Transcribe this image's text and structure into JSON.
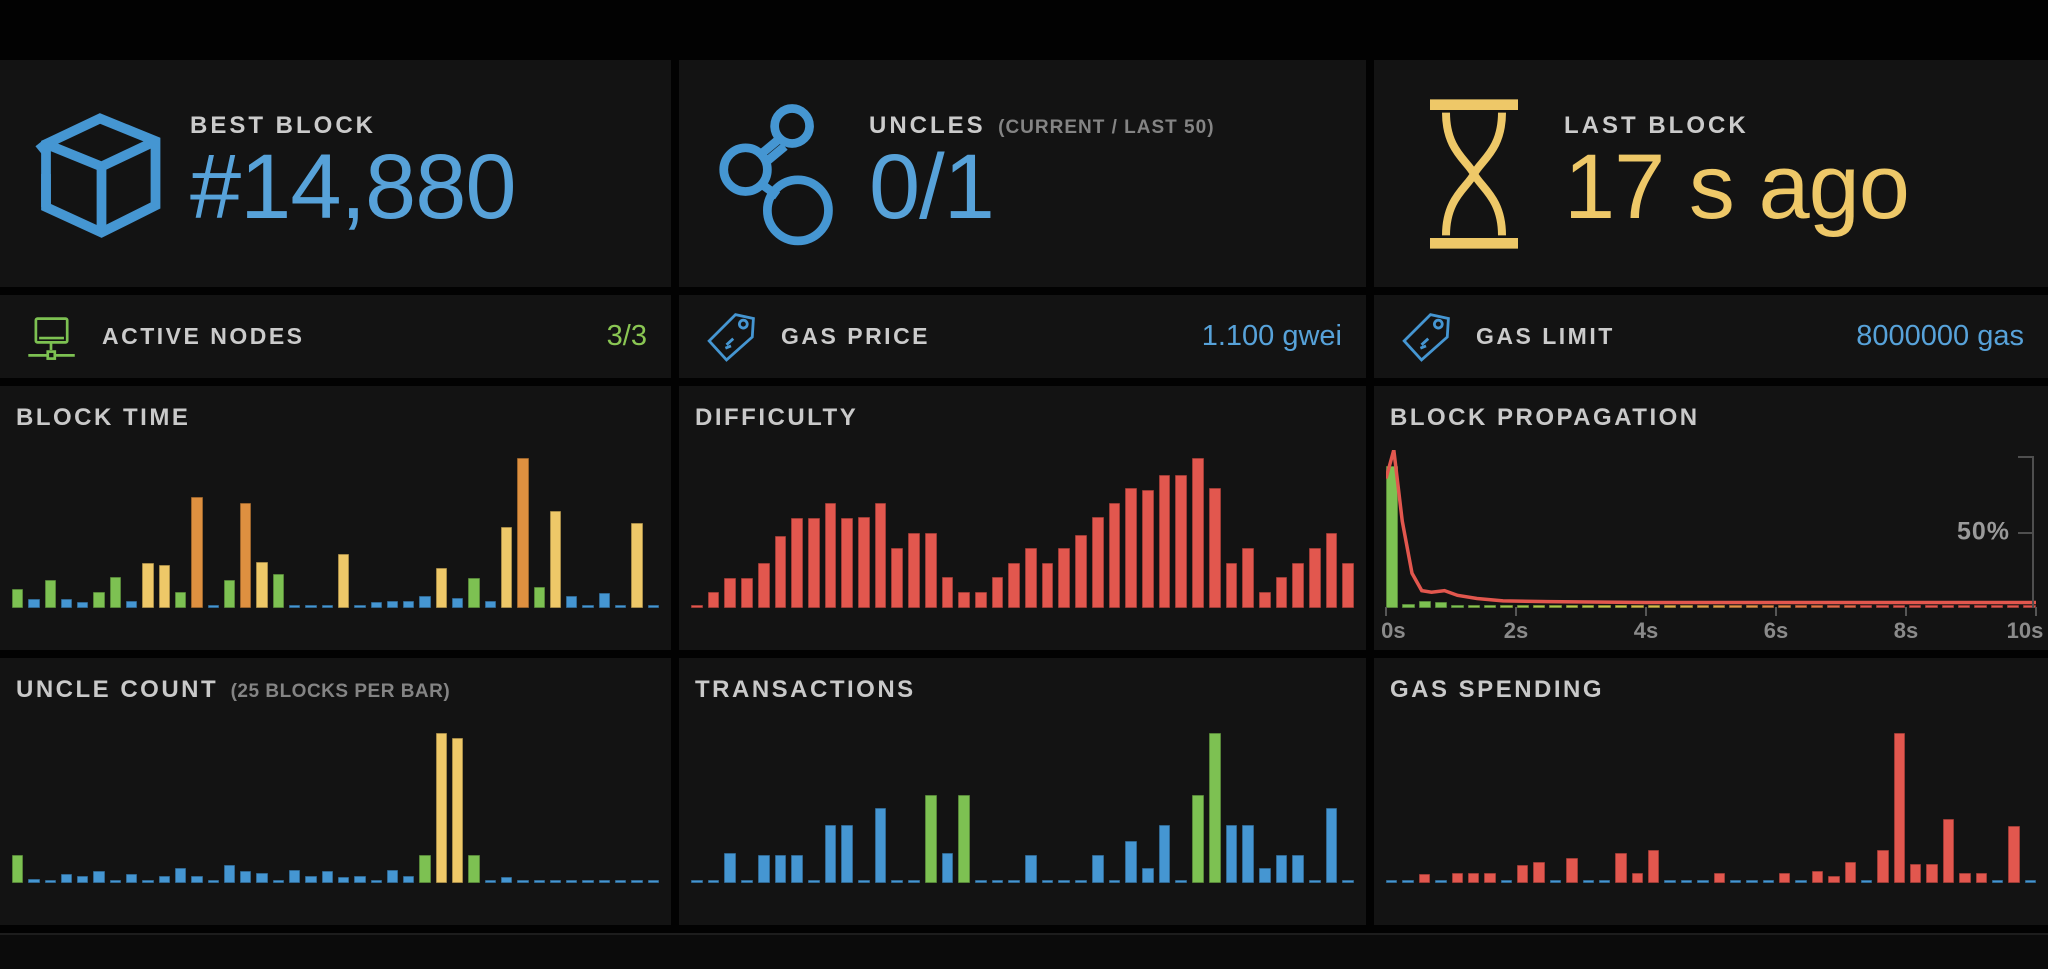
{
  "palette": {
    "b": "#4596d2",
    "g": "#7dc152",
    "y": "#eec868",
    "o": "#de9040",
    "r": "#e2574e"
  },
  "stats": {
    "best_block": {
      "label": "BEST BLOCK",
      "value": "#14,880"
    },
    "uncles": {
      "label": "UNCLES",
      "note": "(CURRENT / LAST 50)",
      "value": "0/1"
    },
    "last_block": {
      "label": "LAST BLOCK",
      "value": "17 s ago"
    },
    "active_nodes": {
      "label": "ACTIVE NODES",
      "value": "3/3"
    },
    "gas_price": {
      "label": "GAS PRICE",
      "value": "1.100 gwei"
    },
    "gas_limit": {
      "label": "GAS LIMIT",
      "value": "8000000 gas"
    }
  },
  "chart_data": {
    "block_time": {
      "type": "bar",
      "title": "BLOCK TIME",
      "value_scale": "percent-of-max-bar",
      "grid": false,
      "values": [
        13,
        6,
        19,
        6,
        4,
        11,
        21,
        5,
        30,
        29,
        11,
        74,
        2,
        19,
        70,
        31,
        23,
        2,
        2,
        2,
        36,
        2,
        4,
        5,
        5,
        8,
        27,
        7,
        20,
        5,
        54,
        100,
        14,
        65,
        8,
        2,
        10,
        2,
        57,
        2
      ],
      "colors": [
        "g",
        "b",
        "g",
        "b",
        "b",
        "g",
        "g",
        "b",
        "y",
        "y",
        "g",
        "o",
        "b",
        "g",
        "o",
        "y",
        "g",
        "b",
        "b",
        "b",
        "y",
        "b",
        "b",
        "b",
        "b",
        "b",
        "y",
        "b",
        "g",
        "b",
        "y",
        "o",
        "g",
        "y",
        "b",
        "b",
        "b",
        "b",
        "y",
        "b"
      ]
    },
    "difficulty": {
      "type": "bar",
      "title": "DIFFICULTY",
      "value_scale": "percent-of-max-bar",
      "grid": false,
      "values": [
        1,
        11,
        20,
        20,
        30,
        48,
        60,
        60,
        70,
        60,
        61,
        70,
        40,
        50,
        50,
        21,
        11,
        11,
        21,
        30,
        40,
        30,
        40,
        49,
        61,
        70,
        80,
        79,
        89,
        89,
        100,
        80,
        30,
        40,
        11,
        21,
        30,
        40,
        50,
        30
      ],
      "colors": [
        "r",
        "r",
        "r",
        "r",
        "r",
        "r",
        "r",
        "r",
        "r",
        "r",
        "r",
        "r",
        "r",
        "r",
        "r",
        "r",
        "r",
        "r",
        "r",
        "r",
        "r",
        "r",
        "r",
        "r",
        "r",
        "r",
        "r",
        "r",
        "r",
        "r",
        "r",
        "r",
        "r",
        "r",
        "r",
        "r",
        "r",
        "r",
        "r",
        "r"
      ]
    },
    "block_propagation": {
      "type": "histogram",
      "title": "BLOCK PROPAGATION",
      "value_scale": "percent-of-nodes",
      "x_labels": [
        "0s",
        "2s",
        "4s",
        "6s",
        "8s",
        "10s"
      ],
      "xlim": [
        0,
        10
      ],
      "y_label": "50%",
      "ylim": [
        0,
        100
      ],
      "values": [
        95,
        3,
        5,
        4,
        2,
        1.5,
        1.5,
        1.5,
        1.5,
        1.5,
        1.5,
        1.5,
        1.5,
        1.5,
        1.5,
        1.5,
        1.5,
        1.5,
        1.5,
        1.5,
        1.5,
        1.5,
        1.5,
        1.5,
        1.5,
        1.5,
        1.5,
        1.5,
        1.5,
        1.5,
        1.5,
        1.5,
        1.5,
        1.5,
        1.5,
        1.5,
        1.5,
        1.5,
        1.5,
        1.5
      ],
      "colors": [
        "#7dc152",
        "#7dc152",
        "#7dc152",
        "#7dc152",
        "#7dc152",
        "#8cc44f",
        "#8cc44f",
        "#9bc64d",
        "#9bc64d",
        "#aac84b",
        "#aac84b",
        "#b9c94a",
        "#b9c94a",
        "#c8c74a",
        "#c8c74a",
        "#d4bc4a",
        "#d4bc4a",
        "#ddae49",
        "#ddae49",
        "#e0a148",
        "#e0a148",
        "#e29347",
        "#e29347",
        "#e28546",
        "#e28546",
        "#e27745",
        "#e27745",
        "#e26a4a",
        "#e26a4a",
        "#e2574e",
        "#e2574e",
        "#e2574e",
        "#e2574e",
        "#e2574e",
        "#e2574e",
        "#e2574e",
        "#e2574e",
        "#e2574e",
        "#e2574e",
        "#e2574e"
      ],
      "line_color": "#e2574e",
      "line_points": [
        [
          0,
          82
        ],
        [
          1.2,
          100
        ],
        [
          2.5,
          55
        ],
        [
          4,
          22
        ],
        [
          5.5,
          11
        ],
        [
          7,
          10
        ],
        [
          9,
          11
        ],
        [
          11,
          8
        ],
        [
          14,
          6
        ],
        [
          18,
          4.5
        ],
        [
          25,
          4
        ],
        [
          40,
          3.5
        ],
        [
          70,
          3.5
        ],
        [
          100,
          3.5
        ]
      ]
    },
    "uncle_count": {
      "type": "bar",
      "title": "UNCLE COUNT",
      "note": "(25 BLOCKS PER BAR)",
      "value_scale": "percent-of-max-bar",
      "grid": false,
      "values": [
        19,
        3,
        2,
        6,
        5,
        8,
        2,
        6,
        2,
        5,
        10,
        5,
        1,
        12,
        8,
        7,
        2,
        9,
        5,
        8,
        4,
        5,
        2,
        9,
        5,
        19,
        100,
        97,
        19,
        1,
        4,
        1,
        1,
        1,
        1,
        1,
        1,
        2,
        2,
        1
      ],
      "colors": [
        "g",
        "b",
        "b",
        "b",
        "b",
        "b",
        "b",
        "b",
        "b",
        "b",
        "b",
        "b",
        "b",
        "b",
        "b",
        "b",
        "b",
        "b",
        "b",
        "b",
        "b",
        "b",
        "b",
        "b",
        "b",
        "g",
        "y",
        "y",
        "g",
        "b",
        "b",
        "b",
        "b",
        "b",
        "b",
        "b",
        "b",
        "b",
        "b",
        "b"
      ]
    },
    "transactions": {
      "type": "bar",
      "title": "TRANSACTIONS",
      "value_scale": "percent-of-max-bar",
      "grid": false,
      "values": [
        1,
        1,
        20,
        1,
        19,
        19,
        19,
        1,
        39,
        39,
        1,
        50,
        1,
        1,
        59,
        20,
        59,
        1,
        1,
        1,
        19,
        1,
        1,
        1,
        19,
        1,
        28,
        10,
        39,
        1,
        59,
        100,
        39,
        39,
        10,
        19,
        19,
        1,
        50,
        1
      ],
      "colors": [
        "b",
        "b",
        "b",
        "b",
        "b",
        "b",
        "b",
        "b",
        "b",
        "b",
        "b",
        "b",
        "b",
        "b",
        "g",
        "b",
        "g",
        "b",
        "b",
        "b",
        "b",
        "b",
        "b",
        "b",
        "b",
        "b",
        "b",
        "b",
        "b",
        "b",
        "g",
        "g",
        "b",
        "b",
        "b",
        "b",
        "b",
        "b",
        "b",
        "b"
      ]
    },
    "gas_spending": {
      "type": "bar",
      "title": "GAS SPENDING",
      "value_scale": "percent-of-max-bar",
      "grid": false,
      "values": [
        1,
        1,
        6,
        1,
        7,
        7,
        7,
        1,
        12,
        14,
        1,
        17,
        1,
        1,
        20,
        7,
        22,
        1,
        1,
        1,
        7,
        1,
        1,
        1,
        7,
        1,
        8,
        5,
        14,
        1,
        22,
        100,
        13,
        13,
        43,
        7,
        7,
        1,
        38,
        1
      ],
      "colors": [
        "b",
        "b",
        "r",
        "b",
        "r",
        "r",
        "r",
        "b",
        "r",
        "r",
        "b",
        "r",
        "b",
        "b",
        "r",
        "r",
        "r",
        "b",
        "b",
        "b",
        "r",
        "b",
        "b",
        "b",
        "r",
        "b",
        "r",
        "r",
        "r",
        "b",
        "r",
        "r",
        "r",
        "r",
        "r",
        "r",
        "r",
        "b",
        "r",
        "b"
      ]
    }
  }
}
